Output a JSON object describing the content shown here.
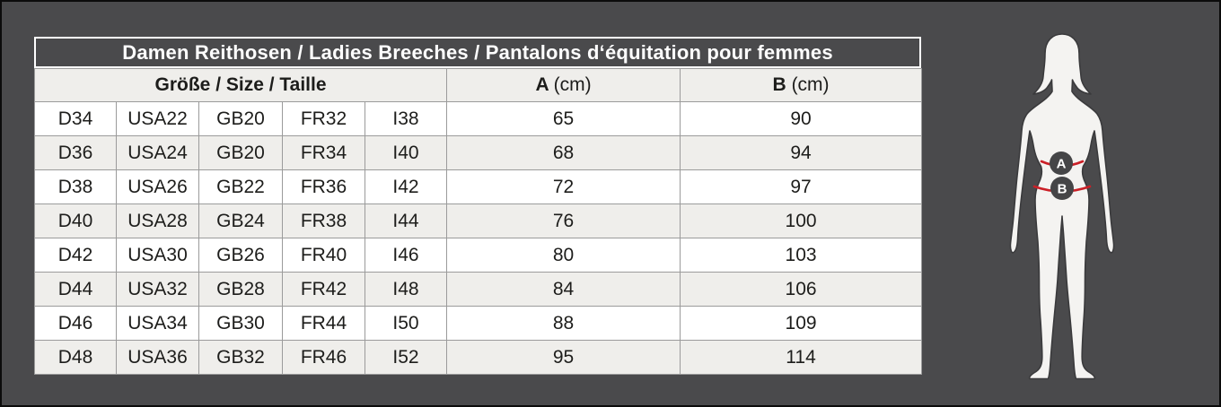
{
  "header": {
    "size_group": "Größe / Size / Taille",
    "a_letter": "A",
    "a_unit": "(cm)",
    "b_letter": "B",
    "b_unit": "(cm)"
  },
  "figure": {
    "marker_a": "A",
    "marker_b": "B"
  },
  "colors": {
    "background": "#4a4a4c",
    "panel_border": "#0b0b0b",
    "title_text": "#ffffff",
    "title_border": "#ffffff",
    "row_white": "#ffffff",
    "row_shaded": "#efeeeb",
    "grid_line": "#9b9b9b",
    "cell_text": "#1d1d1b",
    "measure_line_red": "#cb2027",
    "badge_fill": "#454547",
    "badge_text": "#ffffff",
    "silhouette_fill": "#f4f3f1",
    "silhouette_outline": "#3a3a3c"
  },
  "chart_data": {
    "type": "table",
    "title": "Damen Reithosen / Ladies Breeches / Pantalons d‘équitation pour femmes",
    "column_groups": [
      "Größe / Size / Taille",
      "A (cm)",
      "B (cm)"
    ],
    "columns": [
      "D",
      "USA",
      "GB",
      "FR",
      "I",
      "A (cm)",
      "B (cm)"
    ],
    "rows": [
      [
        "D34",
        "USA22",
        "GB20",
        "FR32",
        "I38",
        "65",
        "90"
      ],
      [
        "D36",
        "USA24",
        "GB20",
        "FR34",
        "I40",
        "68",
        "94"
      ],
      [
        "D38",
        "USA26",
        "GB22",
        "FR36",
        "I42",
        "72",
        "97"
      ],
      [
        "D40",
        "USA28",
        "GB24",
        "FR38",
        "I44",
        "76",
        "100"
      ],
      [
        "D42",
        "USA30",
        "GB26",
        "FR40",
        "I46",
        "80",
        "103"
      ],
      [
        "D44",
        "USA32",
        "GB28",
        "FR42",
        "I48",
        "84",
        "106"
      ],
      [
        "D46",
        "USA34",
        "GB30",
        "FR44",
        "I50",
        "88",
        "109"
      ],
      [
        "D48",
        "USA36",
        "GB32",
        "FR46",
        "I52",
        "95",
        "114"
      ]
    ]
  }
}
